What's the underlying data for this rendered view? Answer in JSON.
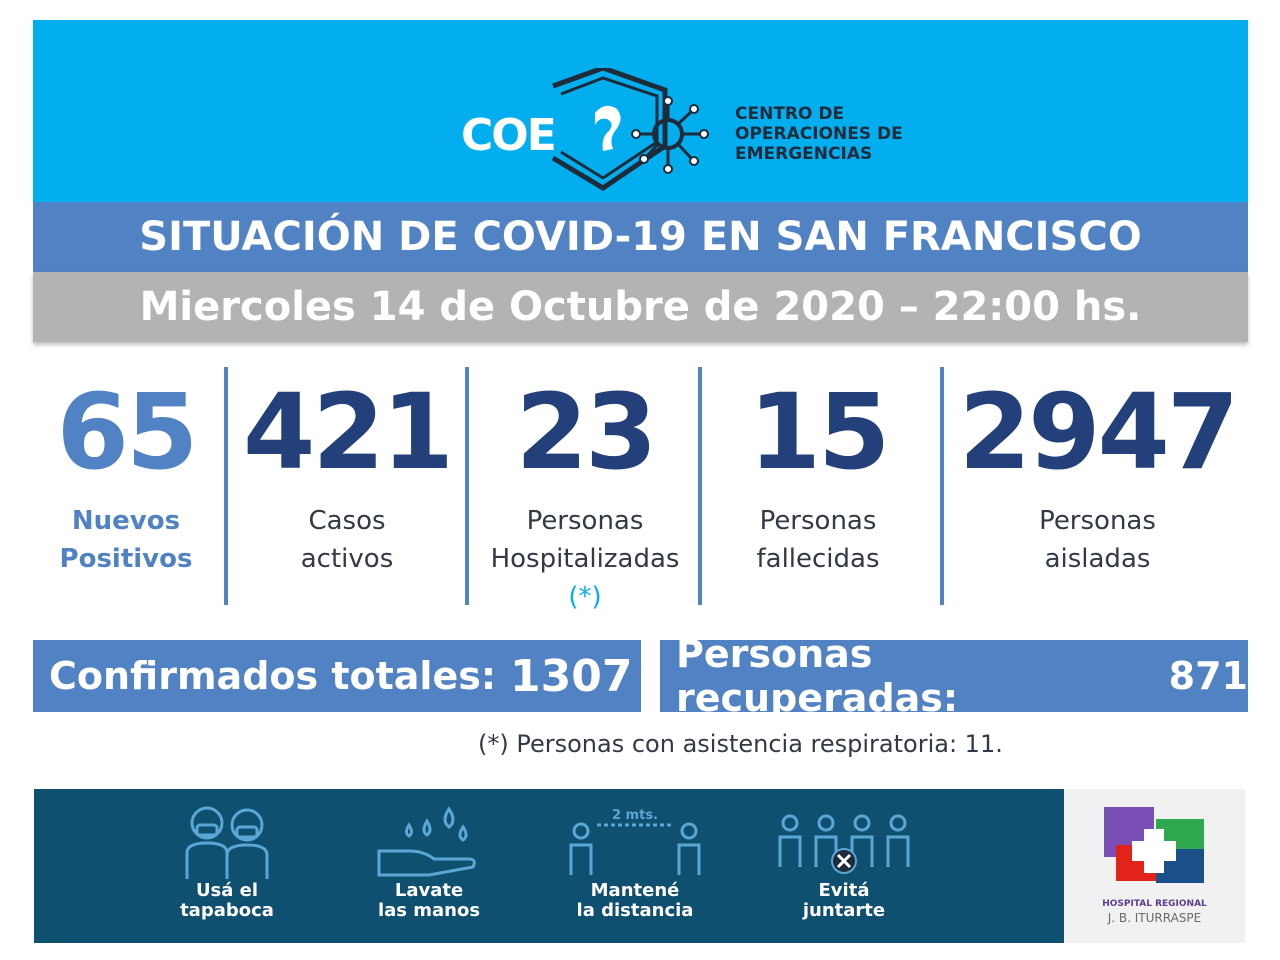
{
  "header": {
    "logo_short": "COE",
    "logo_lines": [
      "CENTRO DE",
      "OPERACIONES DE",
      "EMERGENCIAS"
    ]
  },
  "title": "SITUACIÓN DE COVID-19 EN SAN FRANCISCO",
  "date": "Miercoles 14 de Octubre de 2020 – 22:00 hs.",
  "stats": [
    {
      "value": "65",
      "label_1": "Nuevos",
      "label_2": "Positivos"
    },
    {
      "value": "421",
      "label_1": "Casos",
      "label_2": "activos"
    },
    {
      "value": "23",
      "label_1": "Personas",
      "label_2": "Hospitalizadas",
      "note": "(*)"
    },
    {
      "value": "15",
      "label_1": "Personas",
      "label_2": "fallecidas"
    },
    {
      "value": "2947",
      "label_1": "Personas",
      "label_2": "aisladas"
    }
  ],
  "totals": {
    "confirmed_label": "Confirmados totales:",
    "confirmed_value": "1307",
    "recovered_label": "Personas recuperadas:",
    "recovered_value": "871"
  },
  "footnote": "(*) Personas con asistencia respiratoria: 11.",
  "tips": [
    {
      "icon": "mask-people-icon",
      "line_1": "Usá el",
      "line_2": "tapaboca"
    },
    {
      "icon": "hand-wash-icon",
      "line_1": "Lavate",
      "line_2": "las manos"
    },
    {
      "icon": "distance-icon",
      "line_1": "Mantené",
      "line_2": "la distancia",
      "distance_label": "2 mts."
    },
    {
      "icon": "no-gathering-icon",
      "line_1": "Evitá",
      "line_2": "juntarte"
    }
  ],
  "hospital": {
    "line_1": "HOSPITAL REGIONAL",
    "line_2": "J. B. ITURRASPE"
  },
  "colors": {
    "header_bg": "#03aeef",
    "primary_blue": "#5182c3",
    "dark_number": "#23407a",
    "date_bar": "#b3b3b3",
    "bottom_bg": "#0f4f6f"
  }
}
